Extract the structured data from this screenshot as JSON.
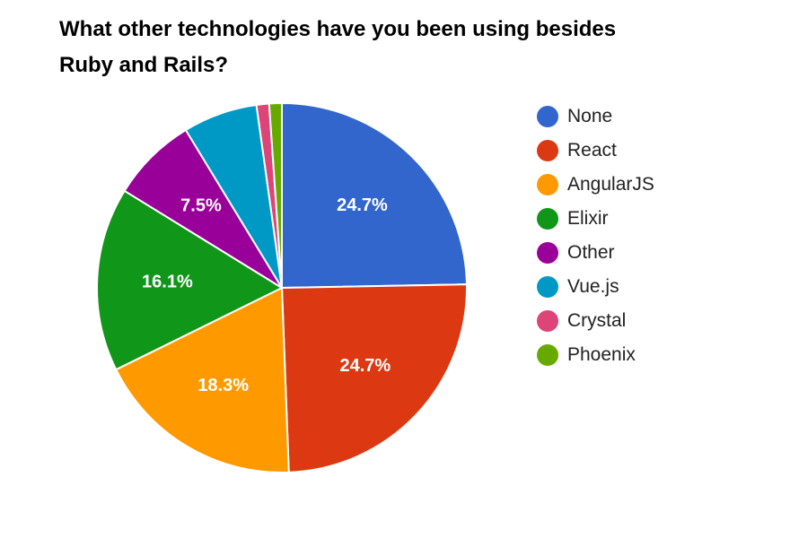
{
  "chart_data": {
    "type": "pie",
    "title_lines": [
      "What other technologies have you been using besides",
      "Ruby and Rails?"
    ],
    "slices": [
      {
        "name": "None",
        "value": 24.7,
        "label": "24.7%",
        "color": "#3366cc"
      },
      {
        "name": "React",
        "value": 24.7,
        "label": "24.7%",
        "color": "#dc3912"
      },
      {
        "name": "AngularJS",
        "value": 18.3,
        "label": "18.3%",
        "color": "#ff9900"
      },
      {
        "name": "Elixir",
        "value": 16.1,
        "label": "16.1%",
        "color": "#109618"
      },
      {
        "name": "Other",
        "value": 7.5,
        "label": "7.5%",
        "color": "#990099"
      },
      {
        "name": "Vue.js",
        "value": 6.5,
        "label": "",
        "color": "#0099c6"
      },
      {
        "name": "Crystal",
        "value": 1.1,
        "label": "",
        "color": "#dd4477"
      },
      {
        "name": "Phoenix",
        "value": 1.1,
        "label": "",
        "color": "#66aa00"
      }
    ],
    "legend_position": "right"
  }
}
